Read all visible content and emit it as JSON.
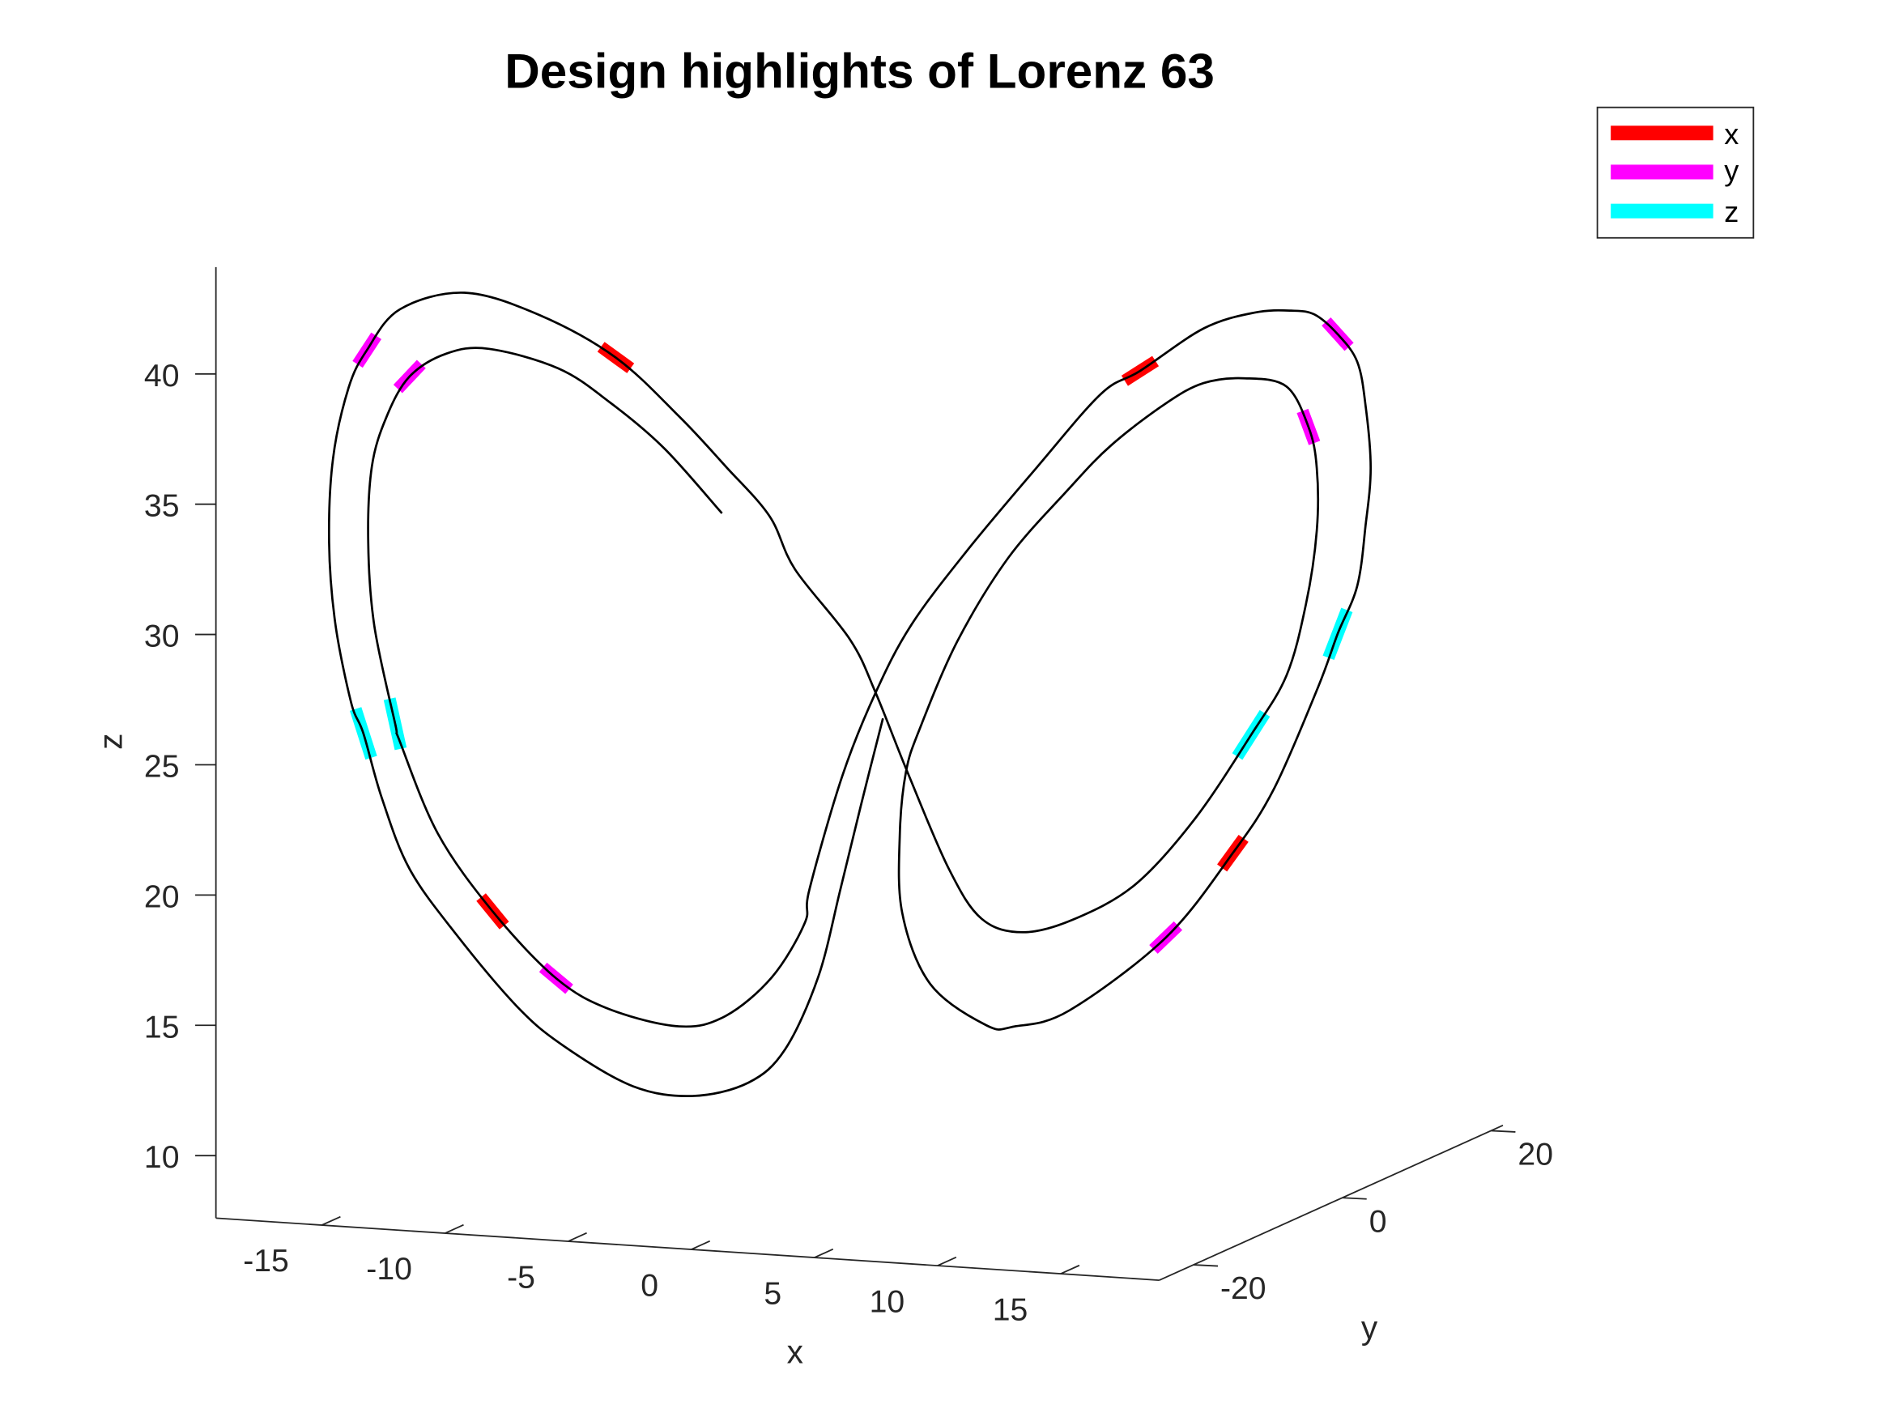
{
  "chart_data": {
    "type": "line3d",
    "title": "Design highlights of Lorenz 63",
    "xlabel": "x",
    "ylabel": "y",
    "zlabel": "z",
    "xlim": [
      -19.3,
      19
    ],
    "ylim": [
      -24.6,
      21.6
    ],
    "zlim": [
      7.6,
      44.1
    ],
    "xticks": [
      -15,
      -10,
      -5,
      0,
      5,
      10,
      15
    ],
    "xtick_labels": [
      "-15",
      "-10",
      "-5",
      "0",
      "5",
      "10",
      "15"
    ],
    "yticks": [
      -20,
      0,
      20
    ],
    "ytick_labels": [
      "-20",
      "0",
      "20"
    ],
    "zticks": [
      10,
      15,
      20,
      25,
      30,
      35,
      40
    ],
    "ztick_labels": [
      "10",
      "15",
      "20",
      "25",
      "30",
      "35",
      "40"
    ],
    "legend": {
      "position": "top-right",
      "entries": [
        {
          "label": "x",
          "color": "#ff0000"
        },
        {
          "label": "y",
          "color": "#ff00ff"
        },
        {
          "label": "z",
          "color": "#00ffff"
        }
      ]
    },
    "trajectory_color": "#000000",
    "trajectory": [
      [
        0.27,
        0.27,
        24.8
      ],
      [
        -0.42,
        -0.42,
        21.5
      ],
      [
        -1.06,
        -1.06,
        18.3
      ],
      [
        -1.75,
        -1.75,
        15.0
      ],
      [
        -2.78,
        -2.78,
        12.3
      ],
      [
        -3.92,
        -3.92,
        11.1
      ],
      [
        -5.67,
        -5.67,
        10.7
      ],
      [
        -7.53,
        -7.53,
        11.2
      ],
      [
        -9.7,
        -9.7,
        12.9
      ],
      [
        -11.14,
        -11.14,
        14.5
      ],
      [
        -13.04,
        -13.04,
        17.4
      ],
      [
        -14.49,
        -14.49,
        20.0
      ],
      [
        -15.36,
        -15.36,
        22.8
      ],
      [
        -15.93,
        -15.93,
        25.3
      ],
      [
        -16.31,
        -16.31,
        26.5
      ],
      [
        -16.81,
        -16.81,
        29.6
      ],
      [
        -17.0,
        -17.0,
        32.7
      ],
      [
        -16.88,
        -16.88,
        35.9
      ],
      [
        -16.39,
        -16.39,
        38.6
      ],
      [
        -15.82,
        -15.82,
        40.0
      ],
      [
        -14.79,
        -14.79,
        41.5
      ],
      [
        -12.78,
        -12.78,
        42.0
      ],
      [
        -10.46,
        -10.46,
        41.0
      ],
      [
        -8.06,
        -8.06,
        39.2
      ],
      [
        -6.08,
        -6.08,
        36.8
      ],
      [
        -4.64,
        -4.64,
        34.8
      ],
      [
        -3.27,
        -3.27,
        32.8
      ],
      [
        -2.47,
        -2.47,
        30.7
      ],
      [
        -0.76,
        -0.76,
        27.9
      ],
      [
        0.04,
        0.04,
        25.8
      ],
      [
        1.03,
        1.03,
        22.7
      ],
      [
        2.32,
        2.32,
        18.9
      ],
      [
        3.35,
        3.35,
        16.9
      ],
      [
        4.64,
        4.64,
        16.3
      ],
      [
        6.24,
        6.24,
        16.7
      ],
      [
        8.14,
        8.14,
        17.9
      ],
      [
        10.0,
        10.0,
        20.3
      ],
      [
        11.75,
        11.75,
        23.4
      ],
      [
        12.85,
        12.85,
        25.6
      ],
      [
        13.46,
        13.46,
        28.3
      ],
      [
        13.8,
        13.8,
        31.1
      ],
      [
        13.8,
        13.8,
        33.5
      ],
      [
        13.54,
        13.54,
        35.1
      ],
      [
        12.85,
        12.85,
        36.7
      ],
      [
        11.56,
        11.56,
        37.1
      ],
      [
        10.27,
        10.27,
        37.0
      ],
      [
        9.09,
        9.09,
        36.3
      ],
      [
        7.38,
        7.38,
        34.8
      ],
      [
        6.05,
        6.05,
        33.2
      ],
      [
        4.18,
        4.18,
        30.7
      ],
      [
        2.59,
        2.59,
        27.6
      ],
      [
        1.41,
        1.41,
        24.3
      ],
      [
        0.99,
        0.99,
        22.7
      ],
      [
        0.8,
        0.8,
        20.4
      ],
      [
        0.87,
        0.87,
        17.3
      ],
      [
        1.75,
        1.75,
        14.5
      ],
      [
        3.5,
        3.5,
        12.8
      ],
      [
        4.37,
        4.37,
        12.7
      ],
      [
        6.08,
        6.08,
        13.2
      ],
      [
        9.09,
        9.09,
        15.8
      ],
      [
        11.18,
        11.18,
        18.9
      ],
      [
        12.47,
        12.47,
        21.3
      ],
      [
        13.84,
        13.84,
        25.1
      ],
      [
        14.45,
        14.45,
        27.1
      ],
      [
        15.06,
        15.06,
        28.9
      ],
      [
        15.32,
        15.32,
        31.2
      ],
      [
        15.48,
        15.48,
        33.4
      ],
      [
        15.32,
        15.32,
        35.8
      ],
      [
        15.06,
        15.06,
        37.5
      ],
      [
        14.45,
        14.45,
        38.6
      ],
      [
        13.73,
        13.73,
        39.4
      ],
      [
        13.0,
        13.0,
        39.6
      ],
      [
        11.86,
        11.86,
        39.6
      ],
      [
        10.27,
        10.27,
        39.1
      ],
      [
        8.29,
        8.29,
        37.6
      ],
      [
        7.07,
        7.07,
        36.8
      ],
      [
        5.06,
        5.06,
        34.1
      ],
      [
        2.85,
        2.85,
        31.0
      ],
      [
        1.14,
        1.14,
        28.3
      ],
      [
        0.04,
        0.04,
        25.8
      ],
      [
        -0.99,
        -0.99,
        22.7
      ],
      [
        -2.02,
        -2.02,
        18.4
      ],
      [
        -2.17,
        -2.17,
        17.1
      ],
      [
        -3.19,
        -3.19,
        15.1
      ],
      [
        -4.64,
        -4.64,
        13.7
      ],
      [
        -6.08,
        -6.08,
        13.4
      ],
      [
        -8.25,
        -8.25,
        14.2
      ],
      [
        -9.92,
        -9.92,
        15.5
      ],
      [
        -11.9,
        -11.9,
        18.2
      ],
      [
        -13.61,
        -13.61,
        21.3
      ],
      [
        -14.79,
        -14.79,
        24.9
      ],
      [
        -14.94,
        -14.94,
        25.6
      ],
      [
        -15.59,
        -15.59,
        29.4
      ],
      [
        -15.78,
        -15.78,
        32.6
      ],
      [
        -15.67,
        -15.67,
        35.5
      ],
      [
        -15.21,
        -15.21,
        37.4
      ],
      [
        -14.49,
        -14.49,
        38.9
      ],
      [
        -13.35,
        -13.35,
        39.7
      ],
      [
        -12.02,
        -12.02,
        39.8
      ],
      [
        -9.85,
        -9.85,
        38.9
      ],
      [
        -8.25,
        -8.25,
        37.5
      ],
      [
        -6.54,
        -6.54,
        35.6
      ],
      [
        -4.75,
        -4.75,
        33.0
      ]
    ],
    "highlights": [
      {
        "variable": "x",
        "point": [
          -8.06,
          -8.06,
          39.2
        ]
      },
      {
        "variable": "x",
        "point": [
          -11.9,
          -11.9,
          18.2
        ]
      },
      {
        "variable": "x",
        "point": [
          8.29,
          8.29,
          37.6
        ]
      },
      {
        "variable": "x",
        "point": [
          11.18,
          11.18,
          18.9
        ]
      },
      {
        "variable": "y",
        "point": [
          -15.82,
          -15.82,
          40.0
        ]
      },
      {
        "variable": "y",
        "point": [
          -14.49,
          -14.49,
          38.9
        ]
      },
      {
        "variable": "y",
        "point": [
          -9.92,
          -9.92,
          15.5
        ]
      },
      {
        "variable": "y",
        "point": [
          14.45,
          14.45,
          38.6
        ]
      },
      {
        "variable": "y",
        "point": [
          13.54,
          13.54,
          35.1
        ]
      },
      {
        "variable": "y",
        "point": [
          9.09,
          9.09,
          15.8
        ]
      },
      {
        "variable": "z",
        "point": [
          -15.93,
          -15.93,
          25.3
        ]
      },
      {
        "variable": "z",
        "point": [
          -14.94,
          -14.94,
          25.6
        ]
      },
      {
        "variable": "z",
        "point": [
          14.45,
          14.45,
          27.1
        ]
      },
      {
        "variable": "z",
        "point": [
          11.75,
          11.75,
          23.4
        ]
      }
    ]
  }
}
